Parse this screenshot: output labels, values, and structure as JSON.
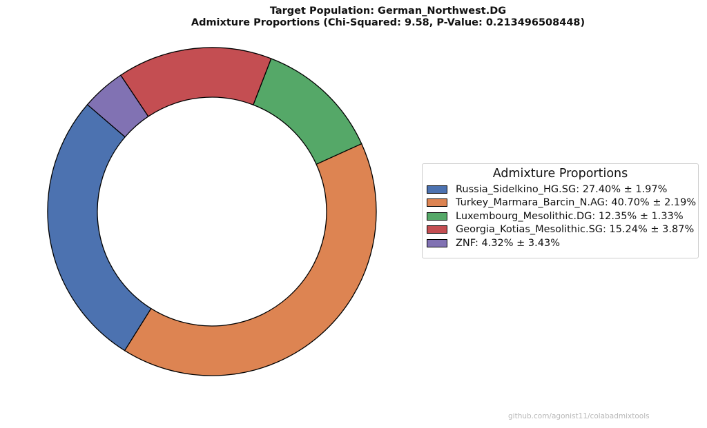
{
  "title_lines": [
    "Target Population: German_Northwest.DG",
    "Admixture Proportions (Chi-Squared: 9.58, P-Value: 0.213496508448)"
  ],
  "legend": {
    "title": "Admixture Proportions",
    "items": [
      "Russia_Sidelkino_HG.SG: 27.40% ± 1.97%",
      "Turkey_Marmara_Barcin_N.AG: 40.70% ± 2.19%",
      "Luxembourg_Mesolithic.DG: 12.35% ± 1.33%",
      "Georgia_Kotias_Mesolithic.SG: 15.24% ± 3.87%",
      "ZNF: 4.32% ± 3.43%"
    ]
  },
  "watermark": "github.com/agonist11/colabadmixtools",
  "chart_data": {
    "type": "pie",
    "style": "donut",
    "title": "Target Population: German_Northwest.DG — Admixture Proportions (Chi-Squared: 9.58, P-Value: 0.213496508448)",
    "legend_position": "right",
    "slices": [
      {
        "label": "Russia_Sidelkino_HG.SG",
        "value": 27.4,
        "error": 1.97,
        "color": "#4c72b0"
      },
      {
        "label": "Turkey_Marmara_Barcin_N.AG",
        "value": 40.7,
        "error": 2.19,
        "color": "#dd8452"
      },
      {
        "label": "Luxembourg_Mesolithic.DG",
        "value": 12.35,
        "error": 1.33,
        "color": "#55a868"
      },
      {
        "label": "Georgia_Kotias_Mesolithic.SG",
        "value": 15.24,
        "error": 3.87,
        "color": "#c44e52"
      },
      {
        "label": "ZNF",
        "value": 4.32,
        "error": 3.43,
        "color": "#8172b3"
      }
    ]
  }
}
